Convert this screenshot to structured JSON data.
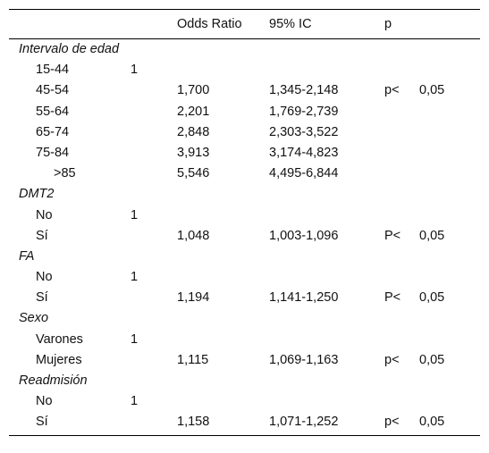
{
  "header": {
    "col_variable": "",
    "col_or": "Odds Ratio",
    "col_ic": "95% IC",
    "col_p": "p"
  },
  "rows": [
    {
      "type": "group",
      "label": "Intervalo de edad"
    },
    {
      "type": "item",
      "label": "15-44",
      "ref": "1",
      "or": "",
      "ic": "",
      "p_sign": "",
      "p_val": ""
    },
    {
      "type": "item",
      "label": "45-54",
      "ref": "",
      "or": "1,700",
      "ic": "1,345-2,148",
      "p_sign": "p<",
      "p_val": "0,05"
    },
    {
      "type": "item",
      "label": "55-64",
      "ref": "",
      "or": "2,201",
      "ic": "1,769-2,739",
      "p_sign": "",
      "p_val": ""
    },
    {
      "type": "item",
      "label": "65-74",
      "ref": "",
      "or": "2,848",
      "ic": "2,303-3,522",
      "p_sign": "",
      "p_val": ""
    },
    {
      "type": "item",
      "label": "75-84",
      "ref": "",
      "or": "3,913",
      "ic": "3,174-4,823",
      "p_sign": "",
      "p_val": ""
    },
    {
      "type": "item-deep",
      "label": ">85",
      "ref": "",
      "or": "5,546",
      "ic": "4,495-6,844",
      "p_sign": "",
      "p_val": ""
    },
    {
      "type": "group",
      "label": "DMT2"
    },
    {
      "type": "item",
      "label": "No",
      "ref": "1",
      "or": "",
      "ic": "",
      "p_sign": "",
      "p_val": ""
    },
    {
      "type": "item",
      "label": "Sí",
      "ref": "",
      "or": "1,048",
      "ic": "1,003-1,096",
      "p_sign": "P<",
      "p_val": "0,05"
    },
    {
      "type": "group",
      "label": "FA"
    },
    {
      "type": "item",
      "label": "No",
      "ref": "1",
      "or": "",
      "ic": "",
      "p_sign": "",
      "p_val": ""
    },
    {
      "type": "item",
      "label": "Sí",
      "ref": "",
      "or": "1,194",
      "ic": "1,141-1,250",
      "p_sign": "P<",
      "p_val": "0,05"
    },
    {
      "type": "group",
      "label": "Sexo"
    },
    {
      "type": "item",
      "label": "Varones",
      "ref": "1",
      "or": "",
      "ic": "",
      "p_sign": "",
      "p_val": ""
    },
    {
      "type": "item",
      "label": "Mujeres",
      "ref": "",
      "or": "1,115",
      "ic": "1,069-1,163",
      "p_sign": "p<",
      "p_val": "0,05"
    },
    {
      "type": "group",
      "label": "Readmisión"
    },
    {
      "type": "item",
      "label": "No",
      "ref": "1",
      "or": "",
      "ic": "",
      "p_sign": "",
      "p_val": ""
    },
    {
      "type": "item",
      "label": "Sí",
      "ref": "",
      "or": "1,158",
      "ic": "1,071-1,252",
      "p_sign": "p<",
      "p_val": "0,05"
    }
  ]
}
